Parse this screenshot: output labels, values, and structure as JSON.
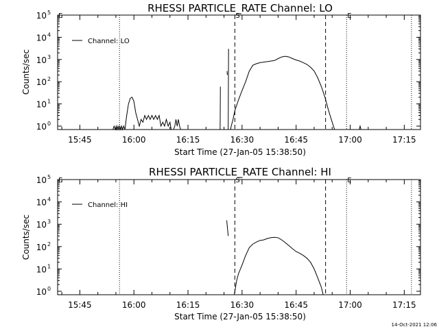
{
  "footer": {
    "timestamp": "14-Oct-2021 12:06"
  },
  "chart_data": [
    {
      "type": "line",
      "title": "RHESSI PARTICLE_RATE Channel: LO",
      "xlabel": "Start Time (27-Jan-05 15:38:50)",
      "ylabel": "Counts/sec",
      "y_scale": "log",
      "ylim": [
        0.7,
        100000
      ],
      "xlim": [
        "15:38:50",
        "17:19:30"
      ],
      "x_ticks": [
        "15:45",
        "16:00",
        "16:15",
        "16:30",
        "16:45",
        "17:00",
        "17:15"
      ],
      "y_ticks": [
        {
          "base": "10",
          "exp": "0",
          "value": 1
        },
        {
          "base": "10",
          "exp": "1",
          "value": 10
        },
        {
          "base": "10",
          "exp": "2",
          "value": 100
        },
        {
          "base": "10",
          "exp": "3",
          "value": 1000
        },
        {
          "base": "10",
          "exp": "4",
          "value": 10000
        },
        {
          "base": "10",
          "exp": "5",
          "value": 100000
        }
      ],
      "legend": {
        "position": "top-left",
        "entries": [
          "Channel: LO"
        ]
      },
      "flags": [
        {
          "label": "E",
          "time": "15:38:50"
        },
        {
          "label": "S",
          "time": "16:28:00"
        },
        {
          "label": "E",
          "time": "16:59:00"
        }
      ],
      "vlines": [
        {
          "time": "15:56:00",
          "style": "dotted"
        },
        {
          "time": "16:28:00",
          "style": "dashed"
        },
        {
          "time": "16:53:10",
          "style": "dashed"
        },
        {
          "time": "16:59:00",
          "style": "dotted"
        },
        {
          "time": "17:17:00",
          "style": "dotted"
        }
      ],
      "series": [
        {
          "name": "Channel: LO",
          "segments": [
            [
              [
                "15:54:10",
                0.7
              ],
              [
                "15:54:30",
                1
              ],
              [
                "15:54:50",
                0.7
              ],
              [
                "15:55:05",
                1
              ],
              [
                "15:55:20",
                0.7
              ],
              [
                "15:55:35",
                1
              ],
              [
                "15:55:50",
                0.7
              ],
              [
                "15:56:05",
                1
              ],
              [
                "15:56:20",
                0.7
              ],
              [
                "15:56:35",
                1
              ],
              [
                "15:56:50",
                0.7
              ],
              [
                "15:57:10",
                1
              ],
              [
                "15:57:30",
                0.7
              ]
            ],
            [
              [
                "15:57:30",
                0.7
              ],
              [
                "15:58:00",
                3
              ],
              [
                "15:58:30",
                10
              ],
              [
                "15:59:00",
                18
              ],
              [
                "15:59:30",
                20
              ],
              [
                "16:00:00",
                13
              ],
              [
                "16:00:30",
                4
              ],
              [
                "16:01:00",
                2
              ],
              [
                "16:01:30",
                1
              ],
              [
                "16:02:00",
                2
              ],
              [
                "16:02:30",
                1.5
              ],
              [
                "16:03:00",
                3
              ],
              [
                "16:03:30",
                2
              ],
              [
                "16:04:00",
                3
              ],
              [
                "16:04:30",
                2
              ],
              [
                "16:05:00",
                3
              ],
              [
                "16:05:30",
                2
              ],
              [
                "16:06:00",
                3
              ],
              [
                "16:06:30",
                2
              ],
              [
                "16:07:00",
                3
              ],
              [
                "16:07:30",
                1
              ],
              [
                "16:08:00",
                1.5
              ],
              [
                "16:08:30",
                1
              ],
              [
                "16:09:00",
                2
              ],
              [
                "16:09:30",
                1
              ],
              [
                "16:10:00",
                1.5
              ],
              [
                "16:10:20",
                0.7
              ]
            ],
            [
              [
                "16:11:00",
                0.7
              ],
              [
                "16:11:20",
                1
              ],
              [
                "16:11:40",
                2
              ],
              [
                "16:12:00",
                1
              ],
              [
                "16:12:20",
                2
              ],
              [
                "16:12:40",
                1
              ],
              [
                "16:13:00",
                0.7
              ]
            ],
            [
              [
                "16:23:55",
                0.7
              ],
              [
                "16:24:00",
                60
              ]
            ],
            [
              [
                "16:26:10",
                0.7
              ],
              [
                "16:26:15",
                3000
              ]
            ],
            [
              [
                "16:25:50",
                300
              ],
              [
                "16:25:55",
                200
              ]
            ],
            [
              [
                "16:26:50",
                0.7
              ],
              [
                "16:27:00",
                1
              ],
              [
                "16:27:30",
                2
              ],
              [
                "16:28:00",
                5
              ],
              [
                "16:29:00",
                15
              ],
              [
                "16:30:00",
                40
              ],
              [
                "16:31:00",
                100
              ],
              [
                "16:32:00",
                300
              ],
              [
                "16:33:00",
                550
              ],
              [
                "16:34:00",
                650
              ],
              [
                "16:35:00",
                720
              ],
              [
                "16:37:00",
                800
              ],
              [
                "16:39:00",
                900
              ],
              [
                "16:40:00",
                1100
              ],
              [
                "16:41:00",
                1300
              ],
              [
                "16:42:00",
                1400
              ],
              [
                "16:43:00",
                1300
              ],
              [
                "16:44:00",
                1100
              ],
              [
                "16:45:00",
                950
              ],
              [
                "16:46:00",
                850
              ],
              [
                "16:47:00",
                720
              ],
              [
                "16:48:00",
                600
              ],
              [
                "16:49:00",
                450
              ],
              [
                "16:50:00",
                300
              ],
              [
                "16:51:00",
                150
              ],
              [
                "16:52:00",
                60
              ],
              [
                "16:53:00",
                20
              ],
              [
                "16:54:00",
                5
              ],
              [
                "16:55:00",
                1.5
              ],
              [
                "16:55:40",
                0.7
              ]
            ],
            [
              [
                "17:02:30",
                0.7
              ],
              [
                "17:02:45",
                1
              ],
              [
                "17:03:00",
                0.7
              ]
            ]
          ]
        }
      ]
    },
    {
      "type": "line",
      "title": "RHESSI PARTICLE_RATE Channel: HI",
      "xlabel": "Start Time (27-Jan-05 15:38:50)",
      "ylabel": "Counts/sec",
      "y_scale": "log",
      "ylim": [
        0.7,
        100000
      ],
      "xlim": [
        "15:38:50",
        "17:19:30"
      ],
      "x_ticks": [
        "15:45",
        "16:00",
        "16:15",
        "16:30",
        "16:45",
        "17:00",
        "17:15"
      ],
      "y_ticks": [
        {
          "base": "10",
          "exp": "0",
          "value": 1
        },
        {
          "base": "10",
          "exp": "1",
          "value": 10
        },
        {
          "base": "10",
          "exp": "2",
          "value": 100
        },
        {
          "base": "10",
          "exp": "3",
          "value": 1000
        },
        {
          "base": "10",
          "exp": "4",
          "value": 10000
        },
        {
          "base": "10",
          "exp": "5",
          "value": 100000
        }
      ],
      "legend": {
        "position": "top-left",
        "entries": [
          "Channel: HI"
        ]
      },
      "flags": [
        {
          "label": "E",
          "time": "15:38:50"
        },
        {
          "label": "S",
          "time": "16:28:00"
        },
        {
          "label": "E",
          "time": "16:59:00"
        }
      ],
      "vlines": [
        {
          "time": "15:56:00",
          "style": "dotted"
        },
        {
          "time": "16:28:00",
          "style": "dashed"
        },
        {
          "time": "16:53:10",
          "style": "dashed"
        },
        {
          "time": "16:59:00",
          "style": "dotted"
        },
        {
          "time": "17:17:00",
          "style": "dotted"
        }
      ],
      "series": [
        {
          "name": "Channel: HI",
          "segments": [
            [
              [
                "16:25:45",
                1500
              ],
              [
                "16:26:10",
                300
              ]
            ],
            [
              [
                "16:27:50",
                0.7
              ],
              [
                "16:28:00",
                1
              ],
              [
                "16:28:30",
                3
              ],
              [
                "16:29:00",
                6
              ],
              [
                "16:30:00",
                15
              ],
              [
                "16:31:00",
                40
              ],
              [
                "16:32:00",
                90
              ],
              [
                "16:33:00",
                130
              ],
              [
                "16:34:00",
                160
              ],
              [
                "16:35:00",
                190
              ],
              [
                "16:36:00",
                200
              ],
              [
                "16:37:00",
                230
              ],
              [
                "16:38:00",
                250
              ],
              [
                "16:39:00",
                260
              ],
              [
                "16:40:00",
                250
              ],
              [
                "16:41:00",
                200
              ],
              [
                "16:42:00",
                150
              ],
              [
                "16:43:00",
                110
              ],
              [
                "16:44:00",
                80
              ],
              [
                "16:45:00",
                60
              ],
              [
                "16:46:00",
                50
              ],
              [
                "16:47:00",
                40
              ],
              [
                "16:48:00",
                30
              ],
              [
                "16:49:00",
                20
              ],
              [
                "16:50:00",
                10
              ],
              [
                "16:51:00",
                4
              ],
              [
                "16:52:00",
                1.5
              ],
              [
                "16:52:30",
                0.7
              ]
            ]
          ]
        }
      ]
    }
  ]
}
